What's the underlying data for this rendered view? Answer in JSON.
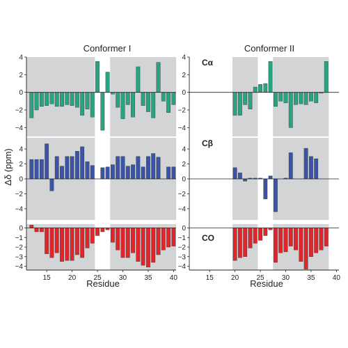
{
  "colors": {
    "shade": "#d3d4d6",
    "c_alpha": "#2aa382",
    "c_beta": "#3a55a8",
    "co": "#e1262b",
    "axis": "#222222"
  },
  "chart_data": [
    {
      "type": "bar",
      "title": "Conformer I",
      "xlabel": "Residue",
      "ylabel": "Δδ (ppm)",
      "xlim": [
        11,
        40.5
      ],
      "xticks": [
        15,
        20,
        25,
        30,
        35,
        40
      ],
      "shaded_ranges": [
        [
          11,
          24.5
        ],
        [
          27.5,
          40.5
        ]
      ],
      "subplots": [
        {
          "key": "ca",
          "label": "",
          "ylim": [
            -5,
            4
          ],
          "yticks": [
            -4,
            -2,
            0,
            2,
            4
          ],
          "x": [
            12,
            13,
            14,
            15,
            16,
            17,
            18,
            19,
            20,
            21,
            22,
            23,
            24,
            25,
            26,
            27,
            28,
            29,
            30,
            31,
            32,
            33,
            34,
            35,
            36,
            37,
            38,
            39,
            40
          ],
          "values": [
            -2.9,
            -2.0,
            -1.6,
            -1.5,
            -1.3,
            -1.6,
            -1.6,
            -1.4,
            -1.5,
            -1.7,
            -2.6,
            -1.9,
            -2.8,
            3.5,
            -4.3,
            2.3,
            -0.2,
            -1.7,
            -3.0,
            -1.4,
            -2.8,
            2.9,
            -1.5,
            -2.2,
            -2.9,
            3.4,
            -1.0,
            -2.3,
            -1.4
          ]
        },
        {
          "key": "cb",
          "label": "",
          "ylim": [
            -5.5,
            5.5
          ],
          "yticks": [
            -4,
            -2,
            0,
            2,
            4
          ],
          "x": [
            12,
            13,
            14,
            15,
            16,
            17,
            18,
            19,
            20,
            21,
            22,
            23,
            24,
            25,
            26,
            27,
            28,
            29,
            30,
            31,
            32,
            33,
            34,
            35,
            36,
            37,
            38,
            39,
            40
          ],
          "values": [
            2.6,
            2.6,
            2.6,
            4.7,
            -1.6,
            3.0,
            1.7,
            3.0,
            3.0,
            3.7,
            4.3,
            2.3,
            1.8,
            null,
            1.5,
            1.6,
            1.9,
            3.0,
            3.0,
            1.7,
            1.9,
            3.0,
            1.6,
            3.0,
            3.4,
            2.9,
            0,
            1.6,
            1.6
          ]
        },
        {
          "key": "co",
          "label": "",
          "ylim": [
            -4.4,
            0.4
          ],
          "yticks": [
            0,
            -1,
            -2,
            -3,
            -4
          ],
          "x": [
            12,
            13,
            14,
            15,
            16,
            17,
            18,
            19,
            20,
            21,
            22,
            23,
            24,
            25,
            26,
            27,
            28,
            29,
            30,
            31,
            32,
            33,
            34,
            35,
            36,
            37,
            38,
            39,
            40
          ],
          "values": [
            0.3,
            -0.4,
            -0.4,
            -2.7,
            -3.1,
            -2.6,
            -3.5,
            -3.4,
            -3.4,
            -2.8,
            -3.1,
            -2.1,
            -1.6,
            -0.8,
            -0.4,
            -0.2,
            -1.5,
            -2.3,
            -3.1,
            -3.1,
            -2.6,
            -3.5,
            -3.9,
            -4.1,
            -3.6,
            -2.8,
            -2.3,
            -2.0,
            -1.9
          ]
        }
      ]
    },
    {
      "type": "bar",
      "title": "Conformer II",
      "xlabel": "Residue",
      "ylabel": "",
      "xlim": [
        11,
        40.5
      ],
      "xticks": [
        15,
        20,
        25,
        30,
        35,
        40
      ],
      "shaded_ranges": [
        [
          19.5,
          24.5
        ],
        [
          27.5,
          38.5
        ]
      ],
      "subplots": [
        {
          "key": "ca",
          "label": "Cα",
          "ylim": [
            -5,
            4
          ],
          "yticks": [
            -4,
            -2,
            0,
            2,
            4
          ],
          "x": [
            20,
            21,
            22,
            23,
            24,
            25,
            26,
            27,
            28,
            29,
            30,
            31,
            32,
            33,
            34,
            35,
            36,
            37,
            38
          ],
          "values": [
            -2.6,
            -2.6,
            -1.4,
            -1.9,
            0.6,
            0.9,
            1.0,
            3.5,
            -1.6,
            -1.0,
            -1.2,
            -4.0,
            -1.4,
            -1.3,
            -1.4,
            -1.0,
            -1.2,
            -0.1,
            3.5
          ]
        },
        {
          "key": "cb",
          "label": "Cβ",
          "ylim": [
            -5.5,
            5.5
          ],
          "yticks": [
            -4,
            -2,
            0,
            2,
            4
          ],
          "x": [
            20,
            21,
            22,
            23,
            24,
            25,
            26,
            27,
            28,
            29,
            30,
            31,
            32,
            33,
            34,
            35,
            36,
            37,
            38
          ],
          "values": [
            1.5,
            0.8,
            -0.3,
            0.1,
            0.1,
            0.1,
            -2.7,
            0.4,
            -4.4,
            0,
            0.1,
            3.5,
            0,
            0,
            4.1,
            3.0,
            2.7,
            0,
            0
          ]
        },
        {
          "key": "co",
          "label": "CO",
          "ylim": [
            -4.4,
            0.4
          ],
          "yticks": [
            0,
            -1,
            -2,
            -3,
            -4
          ],
          "x": [
            20,
            21,
            22,
            23,
            24,
            25,
            26,
            27,
            28,
            29,
            30,
            31,
            32,
            33,
            34,
            35,
            36,
            37,
            38
          ],
          "values": [
            -3.4,
            -3.1,
            -3.0,
            -2.1,
            -1.6,
            -1.3,
            -0.8,
            -0.2,
            -3.6,
            -2.6,
            -2.5,
            -1.9,
            -2.3,
            -3.5,
            -4.3,
            -3.0,
            -2.6,
            -2.3,
            -1.9
          ]
        }
      ]
    }
  ]
}
